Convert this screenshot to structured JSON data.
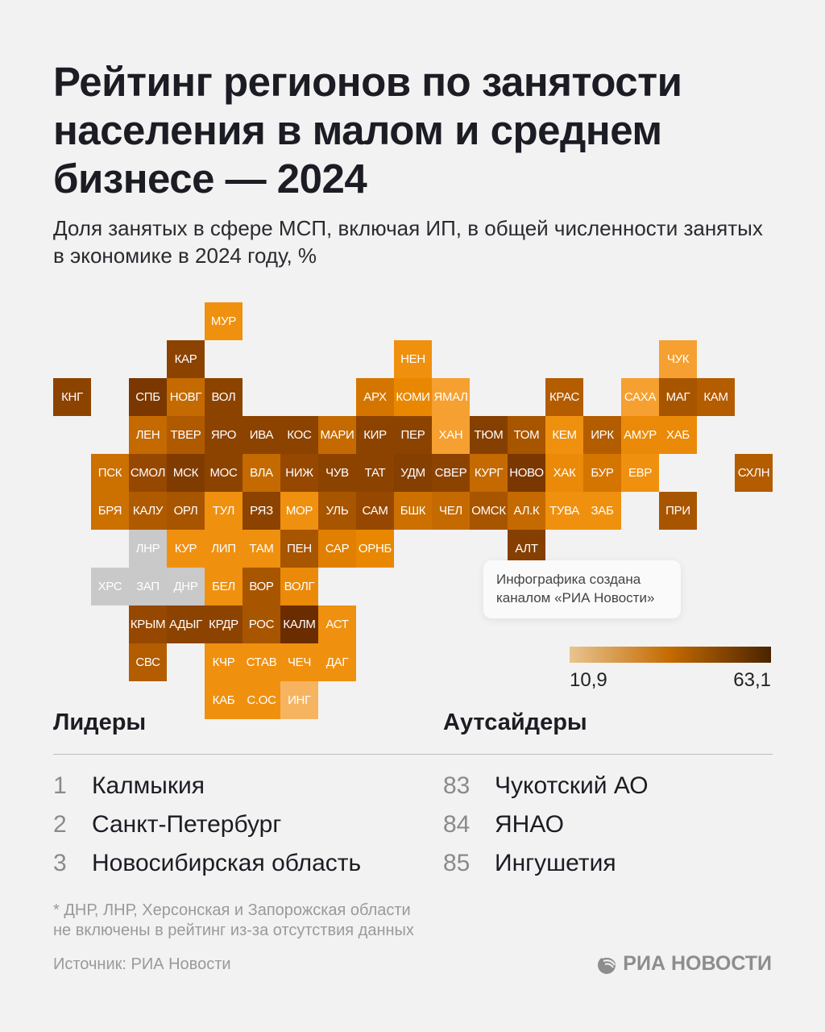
{
  "header": {
    "title": "Рейтинг регионов по занятости населения в малом и среднем бизнесе — 2024",
    "subtitle": "Доля занятых в сфере МСП, включая ИП, в общей численности занятых в экономике в 2024 году, %"
  },
  "colors": {
    "background": "#f2f2f2",
    "no_data": "#c9c9c9",
    "scale_min": "#e8c48f",
    "scale_mid": "#c46a00",
    "scale_max": "#4a2300"
  },
  "map": {
    "tiles": [
      {
        "label": "МУР",
        "color": "#f0900f"
      },
      {
        "label": "КАР",
        "color": "#8c4300"
      },
      {
        "label": "НЕН",
        "color": "#f0900f"
      },
      {
        "label": "ЧУК",
        "color": "#f5a030"
      },
      {
        "label": "КНГ",
        "color": "#8c4300"
      },
      {
        "label": "СПБ",
        "color": "#7a3700"
      },
      {
        "label": "НОВГ",
        "color": "#c46a00"
      },
      {
        "label": "ВОЛ",
        "color": "#8c4300"
      },
      {
        "label": "АРХ",
        "color": "#d47500"
      },
      {
        "label": "КОМИ",
        "color": "#e98800"
      },
      {
        "label": "ЯМАЛ",
        "color": "#f5a030"
      },
      {
        "label": "КРАС",
        "color": "#b35c00"
      },
      {
        "label": "САХА",
        "color": "#f5a030"
      },
      {
        "label": "МАГ",
        "color": "#a85500"
      },
      {
        "label": "КАМ",
        "color": "#b35c00"
      },
      {
        "label": "ЛЕН",
        "color": "#c46a00"
      },
      {
        "label": "ТВЕР",
        "color": "#b05a00"
      },
      {
        "label": "ЯРО",
        "color": "#8c4300"
      },
      {
        "label": "ИВА",
        "color": "#8c4300"
      },
      {
        "label": "КОС",
        "color": "#8c4300"
      },
      {
        "label": "МАРИ",
        "color": "#c46a00"
      },
      {
        "label": "КИР",
        "color": "#8c4300"
      },
      {
        "label": "ПЕР",
        "color": "#8c4300"
      },
      {
        "label": "ХАН",
        "color": "#f5a030"
      },
      {
        "label": "ТЮМ",
        "color": "#853f00"
      },
      {
        "label": "ТОМ",
        "color": "#a85500"
      },
      {
        "label": "КЕМ",
        "color": "#f0900f"
      },
      {
        "label": "ИРК",
        "color": "#b35c00"
      },
      {
        "label": "АМУР",
        "color": "#ea8a08"
      },
      {
        "label": "ХАБ",
        "color": "#ea8a08"
      },
      {
        "label": "ПСК",
        "color": "#cc7000"
      },
      {
        "label": "СМОЛ",
        "color": "#964800"
      },
      {
        "label": "МСК",
        "color": "#803c00"
      },
      {
        "label": "МОС",
        "color": "#8c4300"
      },
      {
        "label": "ВЛА",
        "color": "#c46a00"
      },
      {
        "label": "НИЖ",
        "color": "#964800"
      },
      {
        "label": "ЧУВ",
        "color": "#8c4300"
      },
      {
        "label": "ТАТ",
        "color": "#8c4300"
      },
      {
        "label": "УДМ",
        "color": "#853f00"
      },
      {
        "label": "СВЕР",
        "color": "#8c4300"
      },
      {
        "label": "КУРГ",
        "color": "#c46a00"
      },
      {
        "label": "НОВО",
        "color": "#7a3700"
      },
      {
        "label": "ХАК",
        "color": "#ea8a08"
      },
      {
        "label": "БУР",
        "color": "#d47500"
      },
      {
        "label": "ЕВР",
        "color": "#f0900f"
      },
      {
        "label": "СХЛН",
        "color": "#b35c00"
      },
      {
        "label": "БРЯ",
        "color": "#cc7000"
      },
      {
        "label": "КАЛУ",
        "color": "#b05a00"
      },
      {
        "label": "ОРЛ",
        "color": "#a85500"
      },
      {
        "label": "ТУЛ",
        "color": "#f0900f"
      },
      {
        "label": "РЯЗ",
        "color": "#8c4300"
      },
      {
        "label": "МОР",
        "color": "#f0900f"
      },
      {
        "label": "УЛЬ",
        "color": "#a85500"
      },
      {
        "label": "САМ",
        "color": "#964800"
      },
      {
        "label": "БШК",
        "color": "#cc7000"
      },
      {
        "label": "ЧЕЛ",
        "color": "#c46a00"
      },
      {
        "label": "ОМСК",
        "color": "#a85500"
      },
      {
        "label": "АЛ.К",
        "color": "#c46a00"
      },
      {
        "label": "ТУВА",
        "color": "#f0900f"
      },
      {
        "label": "ЗАБ",
        "color": "#f0900f"
      },
      {
        "label": "ПРИ",
        "color": "#a85500"
      },
      {
        "label": "ЛНР",
        "color": "#c9c9c9"
      },
      {
        "label": "КУР",
        "color": "#f0900f"
      },
      {
        "label": "ЛИП",
        "color": "#f0900f"
      },
      {
        "label": "ТАМ",
        "color": "#f0900f"
      },
      {
        "label": "ПЕН",
        "color": "#a85500"
      },
      {
        "label": "САР",
        "color": "#e07f00"
      },
      {
        "label": "ОРНБ",
        "color": "#e98800"
      },
      {
        "label": "АЛТ",
        "color": "#853f00"
      },
      {
        "label": "ХРС",
        "color": "#c9c9c9"
      },
      {
        "label": "ЗАП",
        "color": "#c9c9c9"
      },
      {
        "label": "ДНР",
        "color": "#c9c9c9"
      },
      {
        "label": "БЕЛ",
        "color": "#f0900f"
      },
      {
        "label": "ВОР",
        "color": "#a85500"
      },
      {
        "label": "ВОЛГ",
        "color": "#ea8a08"
      },
      {
        "label": "КРЫМ",
        "color": "#964800"
      },
      {
        "label": "АДЫГ",
        "color": "#8c4300"
      },
      {
        "label": "КРДР",
        "color": "#8c4300"
      },
      {
        "label": "РОС",
        "color": "#a85500"
      },
      {
        "label": "КАЛМ",
        "color": "#6b2c00"
      },
      {
        "label": "АСТ",
        "color": "#f0900f"
      },
      {
        "label": "СВС",
        "color": "#b35c00"
      },
      {
        "label": "КЧР",
        "color": "#f0900f"
      },
      {
        "label": "СТАВ",
        "color": "#f0900f"
      },
      {
        "label": "ЧЕЧ",
        "color": "#f0900f"
      },
      {
        "label": "ДАГ",
        "color": "#f0900f"
      },
      {
        "label": "КАБ",
        "color": "#f0900f"
      },
      {
        "label": "С.ОС",
        "color": "#f0900f"
      },
      {
        "label": "ИНГ",
        "color": "#f7b460"
      }
    ]
  },
  "note": "Инфографика создана каналом «РИА Новости»",
  "legend": {
    "min": "10,9",
    "max": "63,1"
  },
  "leaders": {
    "title": "Лидеры",
    "items": [
      {
        "rank": "1",
        "name": "Калмыкия"
      },
      {
        "rank": "2",
        "name": "Санкт-Петербург"
      },
      {
        "rank": "3",
        "name": "Новосибирская область"
      }
    ]
  },
  "outsiders": {
    "title": "Аутсайдеры",
    "items": [
      {
        "rank": "83",
        "name": "Чукотский АО"
      },
      {
        "rank": "84",
        "name": "ЯНАО"
      },
      {
        "rank": "85",
        "name": "Ингушетия"
      }
    ]
  },
  "footnote": {
    "line1": "* ДНР, ЛНР, Херсонская и Запорожская области",
    "line2": "не включены в рейтинг из-за отсутствия данных"
  },
  "source": "Источник: РИА Новости",
  "logo": {
    "text": "РИА НОВОСТИ",
    "icon": "ria-globe-icon"
  }
}
